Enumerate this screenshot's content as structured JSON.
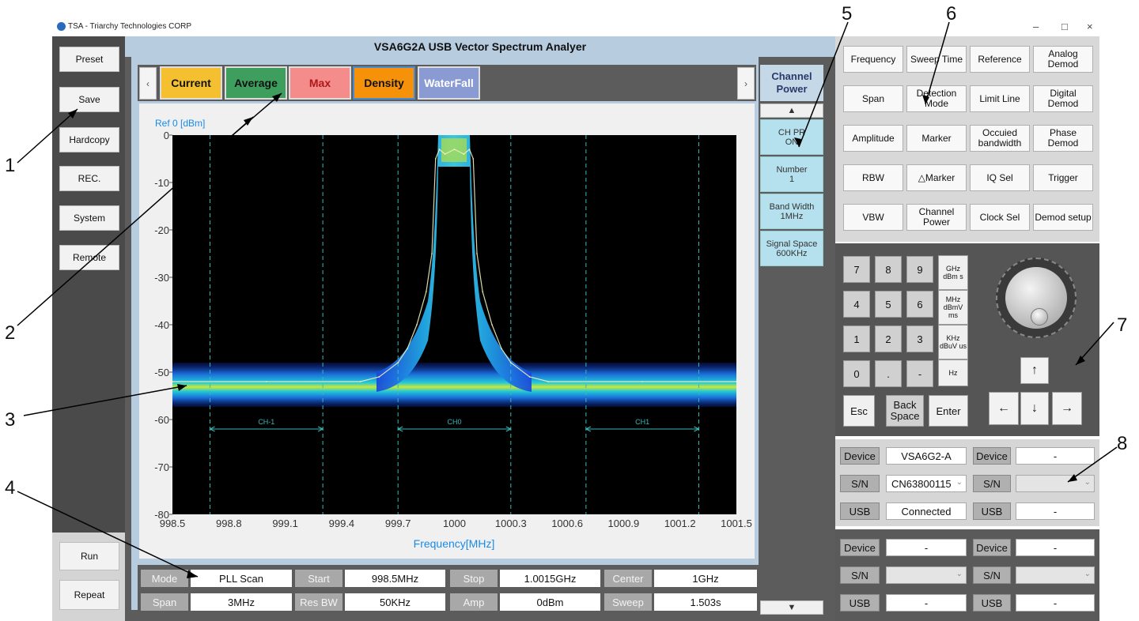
{
  "window": {
    "title": "TSA - Triarchy Technologies CORP",
    "minimize": "–",
    "maximize": "□",
    "close": "×"
  },
  "app_title": "VSA6G2A USB Vector Spectrum Analyer",
  "left_buttons": [
    "Preset",
    "Save",
    "Hardcopy",
    "REC.",
    "System",
    "Remote"
  ],
  "left_bottom_buttons": [
    "Run",
    "Repeat"
  ],
  "tabs": [
    {
      "label": "Current",
      "color": "#f5c030"
    },
    {
      "label": "Average",
      "color": "#3e9e5e"
    },
    {
      "label": "Max",
      "color": "#f58c8c"
    },
    {
      "label": "Density",
      "color": "#f5920a"
    },
    {
      "label": "WaterFall",
      "color": "#8a9ad2"
    }
  ],
  "nav": {
    "prev": "‹",
    "next": "›"
  },
  "side_header": "Channel Power",
  "side_buttons": [
    {
      "line1": "CH PR",
      "line2": "ON"
    },
    {
      "line1": "Number",
      "line2": "1"
    },
    {
      "line1": "Band Width",
      "line2": "1MHz"
    },
    {
      "line1": "Signal Space",
      "line2": "600KHz"
    }
  ],
  "side_arrows": {
    "up": "▲",
    "down": "▼"
  },
  "chart_data": {
    "type": "line",
    "ref_label": "Ref  0 [dBm]",
    "xlabel": "Frequency[MHz]",
    "x_ticks": [
      "998.5",
      "998.8",
      "999.1",
      "999.4",
      "999.7",
      "1000",
      "1000.3",
      "1000.6",
      "1000.9",
      "1001.2",
      "1001.5"
    ],
    "y_ticks": [
      "0",
      "-10",
      "-20",
      "-30",
      "-40",
      "-50",
      "-60",
      "-70",
      "-80"
    ],
    "xlim": [
      998.5,
      1001.5
    ],
    "ylim": [
      -80,
      0
    ],
    "display": "density",
    "channels": [
      {
        "name": "CH-1",
        "start": 998.7,
        "end": 999.3
      },
      {
        "name": "CH0",
        "start": 999.7,
        "end": 1000.3
      },
      {
        "name": "CH1",
        "start": 1000.7,
        "end": 1001.3
      }
    ],
    "series": [
      {
        "x": [
          998.5,
          999.0,
          999.5,
          999.6,
          999.7,
          999.75,
          999.8,
          999.85,
          999.88,
          999.9,
          999.92,
          999.95,
          1000.0,
          1000.05,
          1000.08,
          1000.1,
          1000.12,
          1000.15,
          1000.2,
          1000.25,
          1000.3,
          1000.4,
          1000.5,
          1001.0,
          1001.5
        ],
        "y": [
          -52,
          -52,
          -52,
          -51,
          -48,
          -45,
          -40,
          -33,
          -25,
          -5,
          -3,
          -4,
          -3,
          -4,
          -3,
          -5,
          -25,
          -33,
          -40,
          -45,
          -48,
          -51,
          -52,
          -52,
          -52
        ]
      }
    ]
  },
  "params": {
    "row1": [
      {
        "label": "Mode",
        "value": "PLL Scan"
      },
      {
        "label": "Start",
        "value": "998.5MHz"
      },
      {
        "label": "Stop",
        "value": "1.0015GHz"
      },
      {
        "label": "Center",
        "value": "1GHz"
      }
    ],
    "row2": [
      {
        "label": "Span",
        "value": "3MHz"
      },
      {
        "label": "Res BW",
        "value": "50KHz"
      },
      {
        "label": "Amp",
        "value": "0dBm"
      },
      {
        "label": "Sweep",
        "value": "1.503s"
      }
    ]
  },
  "function_buttons": [
    [
      "Frequency",
      "Sweep Time",
      "Reference",
      "Analog Demod"
    ],
    [
      "Span",
      "Detection Mode",
      "Limit Line",
      "Digital Demod"
    ],
    [
      "Amplitude",
      "Marker",
      "Occuied bandwidth",
      "Phase Demod"
    ],
    [
      "RBW",
      "△Marker",
      "IQ Sel",
      "Trigger"
    ],
    [
      "VBW",
      "Channel Power",
      "Clock Sel",
      "Demod setup"
    ]
  ],
  "keypad": {
    "digits": [
      [
        "7",
        "8",
        "9"
      ],
      [
        "4",
        "5",
        "6"
      ],
      [
        "1",
        "2",
        "3"
      ],
      [
        "0",
        ".",
        "-"
      ]
    ],
    "units": [
      "GHz dBm s",
      "MHz dBmV ms",
      "KHz dBuV us",
      "Hz"
    ],
    "esc": "Esc",
    "backspace": "Back Space",
    "enter": "Enter",
    "arrows": {
      "up": "↑",
      "left": "←",
      "down": "↓",
      "right": "→"
    }
  },
  "devices": {
    "group1": {
      "left": {
        "device_label": "Device",
        "device": "VSA6G2-A",
        "sn_label": "S/N",
        "sn": "CN63800115",
        "usb_label": "USB",
        "usb": "Connected"
      },
      "right": {
        "device_label": "Device",
        "device": "-",
        "sn_label": "S/N",
        "sn": "",
        "usb_label": "USB",
        "usb": "-"
      }
    },
    "group2": {
      "left": {
        "device_label": "Device",
        "device": "-",
        "sn_label": "S/N",
        "sn": "",
        "usb_label": "USB",
        "usb": "-"
      },
      "right": {
        "device_label": "Device",
        "device": "-",
        "sn_label": "S/N",
        "sn": "",
        "usb_label": "USB",
        "usb": "-"
      }
    }
  },
  "callouts": [
    "1",
    "2",
    "3",
    "4",
    "5",
    "6",
    "7",
    "8"
  ]
}
